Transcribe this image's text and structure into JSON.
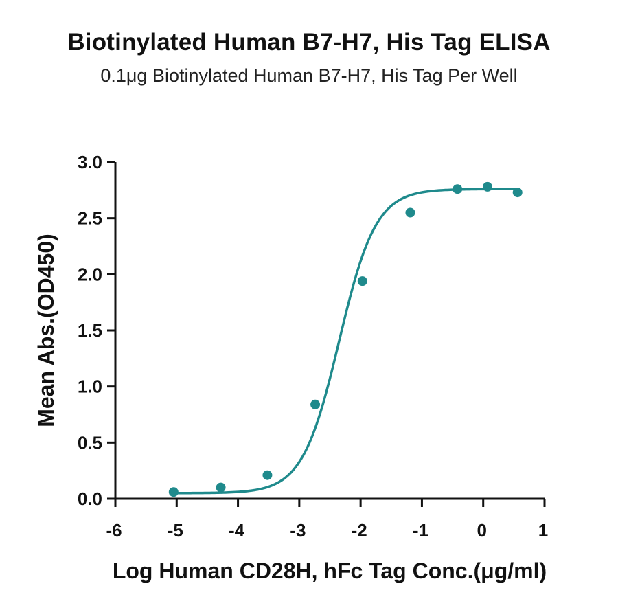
{
  "chart_data": {
    "type": "scatter",
    "title": "Biotinylated Human B7-H7, His Tag ELISA",
    "subtitle": "0.1μg Biotinylated Human B7-H7, His Tag Per Well",
    "xlabel": "Log Human CD28H, hFc Tag Conc.(μg/ml)",
    "ylabel": "Mean Abs.(OD450)",
    "xlim": [
      -6,
      1
    ],
    "ylim": [
      0,
      3.0
    ],
    "xticks": [
      "-6",
      "-5",
      "-4",
      "-3",
      "-2",
      "-1",
      "0",
      "1"
    ],
    "yticks": [
      "0.0",
      "0.5",
      "1.0",
      "1.5",
      "2.0",
      "2.5",
      "3.0"
    ],
    "grid": false,
    "legend": "none",
    "color": "#1f8a8c",
    "series": [
      {
        "points": {
          "x": [
            -5.05,
            -4.28,
            -3.52,
            -2.74,
            -1.97,
            -1.19,
            -0.42,
            0.07,
            0.56
          ],
          "y": [
            0.06,
            0.1,
            0.21,
            0.84,
            1.94,
            2.55,
            2.76,
            2.78,
            2.73
          ]
        },
        "fit": {
          "model": "4PL",
          "bottom": 0.05,
          "top": 2.76,
          "log_ec50": -2.35,
          "hill": 1.45
        }
      }
    ]
  }
}
